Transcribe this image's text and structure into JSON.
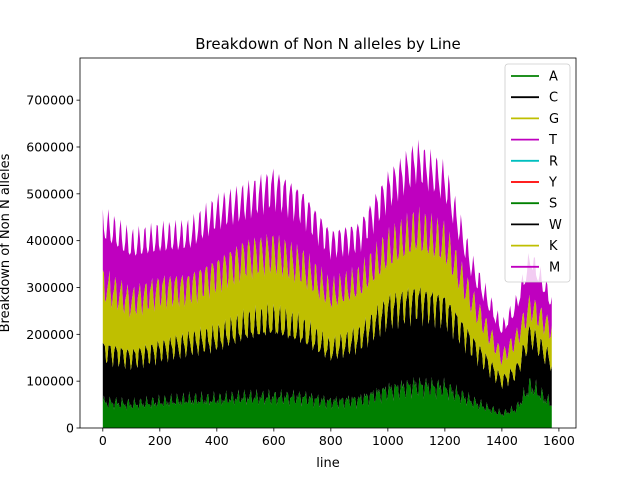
{
  "chart_data": {
    "type": "area",
    "stacked": true,
    "title": "Breakdown of Non N alleles by Line",
    "xlabel": "line",
    "ylabel": "Breakdown of Non N alleles",
    "xlim": [
      -80,
      1660
    ],
    "ylim": [
      0,
      790000
    ],
    "x_ticks": [
      0,
      200,
      400,
      600,
      800,
      1000,
      1200,
      1400,
      1600
    ],
    "x_tick_labels": [
      "0",
      "200",
      "400",
      "600",
      "800",
      "1000",
      "1200",
      "1400",
      "1600"
    ],
    "y_ticks": [
      0,
      100000,
      200000,
      300000,
      400000,
      500000,
      600000,
      700000
    ],
    "y_tick_labels": [
      "0",
      "100000",
      "200000",
      "300000",
      "400000",
      "500000",
      "600000",
      "700000"
    ],
    "grid": false,
    "legend_position": "top-right",
    "x_approx_range": [
      0,
      1575
    ],
    "series": [
      {
        "name": "A",
        "color": "#008000",
        "x": [
          0,
          100,
          200,
          300,
          400,
          500,
          600,
          700,
          800,
          900,
          1000,
          1100,
          1200,
          1300,
          1400,
          1450,
          1500,
          1575
        ],
        "values": [
          55000,
          50000,
          55000,
          60000,
          60000,
          65000,
          65000,
          65000,
          55000,
          60000,
          80000,
          90000,
          85000,
          55000,
          30000,
          40000,
          90000,
          50000
        ]
      },
      {
        "name": "C",
        "color": "#000000",
        "x": [
          0,
          100,
          200,
          300,
          400,
          500,
          600,
          700,
          800,
          900,
          1000,
          1100,
          1200,
          1300,
          1400,
          1450,
          1500,
          1575
        ],
        "values": [
          110000,
          100000,
          110000,
          120000,
          130000,
          150000,
          160000,
          140000,
          110000,
          130000,
          170000,
          180000,
          170000,
          120000,
          70000,
          80000,
          110000,
          90000
        ]
      },
      {
        "name": "G",
        "color": "#bfbf00",
        "x": [
          0,
          100,
          200,
          300,
          400,
          500,
          600,
          700,
          800,
          900,
          1000,
          1100,
          1200,
          1300,
          1400,
          1450,
          1500,
          1575
        ],
        "values": [
          140000,
          120000,
          130000,
          120000,
          140000,
          150000,
          150000,
          140000,
          120000,
          120000,
          130000,
          150000,
          140000,
          90000,
          50000,
          70000,
          60000,
          70000
        ]
      },
      {
        "name": "T",
        "color": "#bf00bf",
        "x": [
          0,
          100,
          200,
          300,
          400,
          500,
          600,
          700,
          800,
          900,
          1000,
          1100,
          1200,
          1300,
          1400,
          1450,
          1500,
          1575
        ],
        "values": [
          130000,
          120000,
          110000,
          110000,
          130000,
          120000,
          140000,
          130000,
          110000,
          100000,
          130000,
          150000,
          130000,
          70000,
          60000,
          70000,
          100000,
          60000
        ]
      },
      {
        "name": "R",
        "color": "#00bfbf",
        "x": [
          0,
          1575
        ],
        "values": [
          0,
          0
        ]
      },
      {
        "name": "Y",
        "color": "#ff0000",
        "x": [
          0,
          1575
        ],
        "values": [
          0,
          0
        ]
      },
      {
        "name": "S",
        "color": "#008000",
        "x": [
          0,
          1575
        ],
        "values": [
          0,
          0
        ]
      },
      {
        "name": "W",
        "color": "#000000",
        "x": [
          0,
          1575
        ],
        "values": [
          0,
          0
        ]
      },
      {
        "name": "K",
        "color": "#bfbf00",
        "x": [
          0,
          1575
        ],
        "values": [
          0,
          0
        ]
      },
      {
        "name": "M",
        "color": "#bf00bf",
        "x": [
          0,
          1575
        ],
        "values": [
          0,
          0
        ]
      }
    ]
  }
}
